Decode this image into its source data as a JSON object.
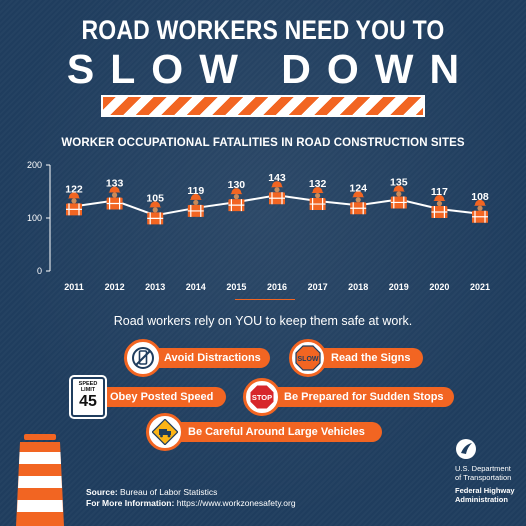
{
  "header": {
    "line1": "ROAD WORKERS NEED YOU TO",
    "line2": "SLOW DOWN"
  },
  "colors": {
    "background": "#1f3d5e",
    "accent": "#f26522",
    "text": "#ffffff"
  },
  "chart_data": {
    "type": "line",
    "title": "WORKER OCCUPATIONAL FATALITIES IN ROAD CONSTRUCTION SITES",
    "x": [
      "2011",
      "2012",
      "2013",
      "2014",
      "2015",
      "2016",
      "2017",
      "2018",
      "2019",
      "2020",
      "2021"
    ],
    "series": [
      {
        "values": [
          122,
          133,
          105,
          119,
          130,
          143,
          132,
          124,
          135,
          117,
          108
        ]
      }
    ],
    "data_labels": [
      "122",
      "133",
      "105",
      "119",
      "130",
      "143",
      "132",
      "124",
      "135",
      "117",
      "108"
    ],
    "ylim": [
      0,
      200
    ],
    "yticks": [
      "0",
      "100",
      "200"
    ],
    "xlabel": "",
    "ylabel": "",
    "marker": "road-worker-icon",
    "grid": false,
    "legend": "none"
  },
  "tagline": "Road workers rely on YOU to keep them safe at work.",
  "tips": {
    "avoid_distractions": {
      "label": "Avoid Distractions",
      "icon": "no-phone-icon"
    },
    "read_signs": {
      "label": "Read the Signs",
      "icon": "slow-sign-icon",
      "icon_text": "SLOW"
    },
    "obey_speed": {
      "label": "Obey Posted Speed",
      "icon": "speed-limit-sign-icon",
      "sign_line1": "SPEED",
      "sign_line2": "LIMIT",
      "sign_value": "45"
    },
    "sudden_stops": {
      "label": "Be Prepared for Sudden Stops",
      "icon": "stop-sign-icon",
      "icon_text": "STOP"
    },
    "large_vehicles": {
      "label": "Be Careful Around Large Vehicles",
      "icon": "truck-warning-icon"
    }
  },
  "footer": {
    "source_label": "Source:",
    "source_value": "Bureau of Labor Statistics",
    "info_label": "For More Information:",
    "info_value": "https://www.workzonesafety.org"
  },
  "agency": {
    "line1": "U.S. Department",
    "line2": "of Transportation",
    "line3": "Federal Highway",
    "line4": "Administration"
  }
}
